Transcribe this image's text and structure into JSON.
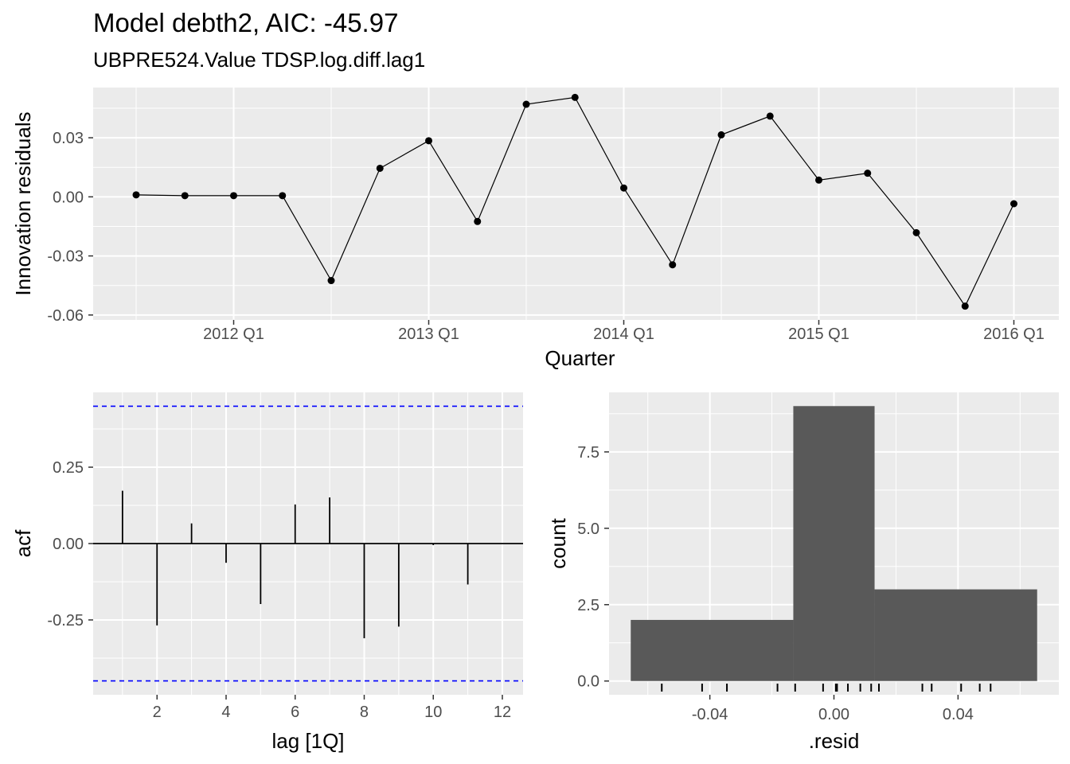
{
  "header": {
    "title": "Model debth2, AIC: -45.97",
    "subtitle": "UBPRE524.Value TDSP.log.diff.lag1"
  },
  "colors": {
    "panel_bg": "#ebebeb",
    "grid": "#ffffff",
    "series": "#000000",
    "ci_line": "#0000ff",
    "bar_fill": "#595959"
  },
  "chart_data": [
    {
      "type": "line",
      "name": "innovation-residuals",
      "xlabel": "Quarter",
      "ylabel": "Innovation residuals",
      "x": [
        "2011 Q3",
        "2011 Q4",
        "2012 Q1",
        "2012 Q2",
        "2012 Q3",
        "2012 Q4",
        "2013 Q1",
        "2013 Q2",
        "2013 Q3",
        "2013 Q4",
        "2014 Q1",
        "2014 Q2",
        "2014 Q3",
        "2014 Q4",
        "2015 Q1",
        "2015 Q2",
        "2015 Q3",
        "2015 Q4",
        "2016 Q1"
      ],
      "y": [
        0.001,
        0.0006,
        0.0006,
        0.0006,
        -0.0425,
        0.0145,
        0.0285,
        -0.0125,
        0.047,
        0.0505,
        0.0045,
        -0.0345,
        0.0315,
        0.041,
        0.0085,
        0.012,
        -0.0182,
        -0.0555,
        -0.0035
      ],
      "x_ticks": [
        "2012 Q1",
        "2013 Q1",
        "2014 Q1",
        "2015 Q1",
        "2016 Q1"
      ],
      "y_ticks": [
        0.03,
        0.0,
        -0.03,
        -0.06
      ],
      "y_tick_labels": [
        "0.03",
        "0.00",
        "-0.03",
        "-0.06"
      ],
      "ylim": [
        -0.0625,
        0.0555
      ],
      "grid": true
    },
    {
      "type": "bar",
      "name": "acf",
      "xlabel": "lag [1Q]",
      "ylabel": "acf",
      "x": [
        1,
        2,
        3,
        4,
        5,
        6,
        7,
        8,
        9,
        10,
        11,
        12
      ],
      "y": [
        0.173,
        -0.268,
        0.066,
        -0.063,
        -0.198,
        0.128,
        0.151,
        -0.31,
        -0.272,
        -0.005,
        -0.134,
        0.0
      ],
      "ci": 0.4496,
      "x_ticks": [
        2,
        4,
        6,
        8,
        10,
        12
      ],
      "x_tick_labels": [
        "2",
        "4",
        "6",
        "8",
        "10",
        "12"
      ],
      "y_ticks": [
        0.25,
        0.0,
        -0.25
      ],
      "y_tick_labels": [
        "0.25",
        "0.00",
        "-0.25"
      ],
      "xlim": [
        0.15,
        12.6
      ],
      "ylim": [
        -0.495,
        0.495
      ],
      "grid": true
    },
    {
      "type": "bar",
      "name": "histogram",
      "xlabel": ".resid",
      "ylabel": "count",
      "bins": [
        {
          "x0": -0.0655,
          "x1": -0.0131,
          "count": 2
        },
        {
          "x0": -0.0131,
          "x1": 0.0131,
          "count": 9
        },
        {
          "x0": 0.0131,
          "x1": 0.0655,
          "count": 3
        }
      ],
      "rug": [
        -0.0555,
        -0.0425,
        -0.0345,
        -0.0182,
        -0.0125,
        -0.0035,
        0.0006,
        0.001,
        0.0045,
        0.0085,
        0.012,
        0.0145,
        0.0285,
        0.0315,
        0.041,
        0.047,
        0.0505
      ],
      "x_ticks": [
        -0.04,
        0.0,
        0.04
      ],
      "x_tick_labels": [
        "-0.04",
        "0.00",
        "0.04"
      ],
      "y_ticks": [
        0.0,
        2.5,
        5.0,
        7.5
      ],
      "y_tick_labels": [
        "0.0",
        "2.5",
        "5.0",
        "7.5"
      ],
      "xlim": [
        -0.0725,
        0.0725
      ],
      "ylim": [
        -0.45,
        9.45
      ],
      "grid": true
    }
  ]
}
